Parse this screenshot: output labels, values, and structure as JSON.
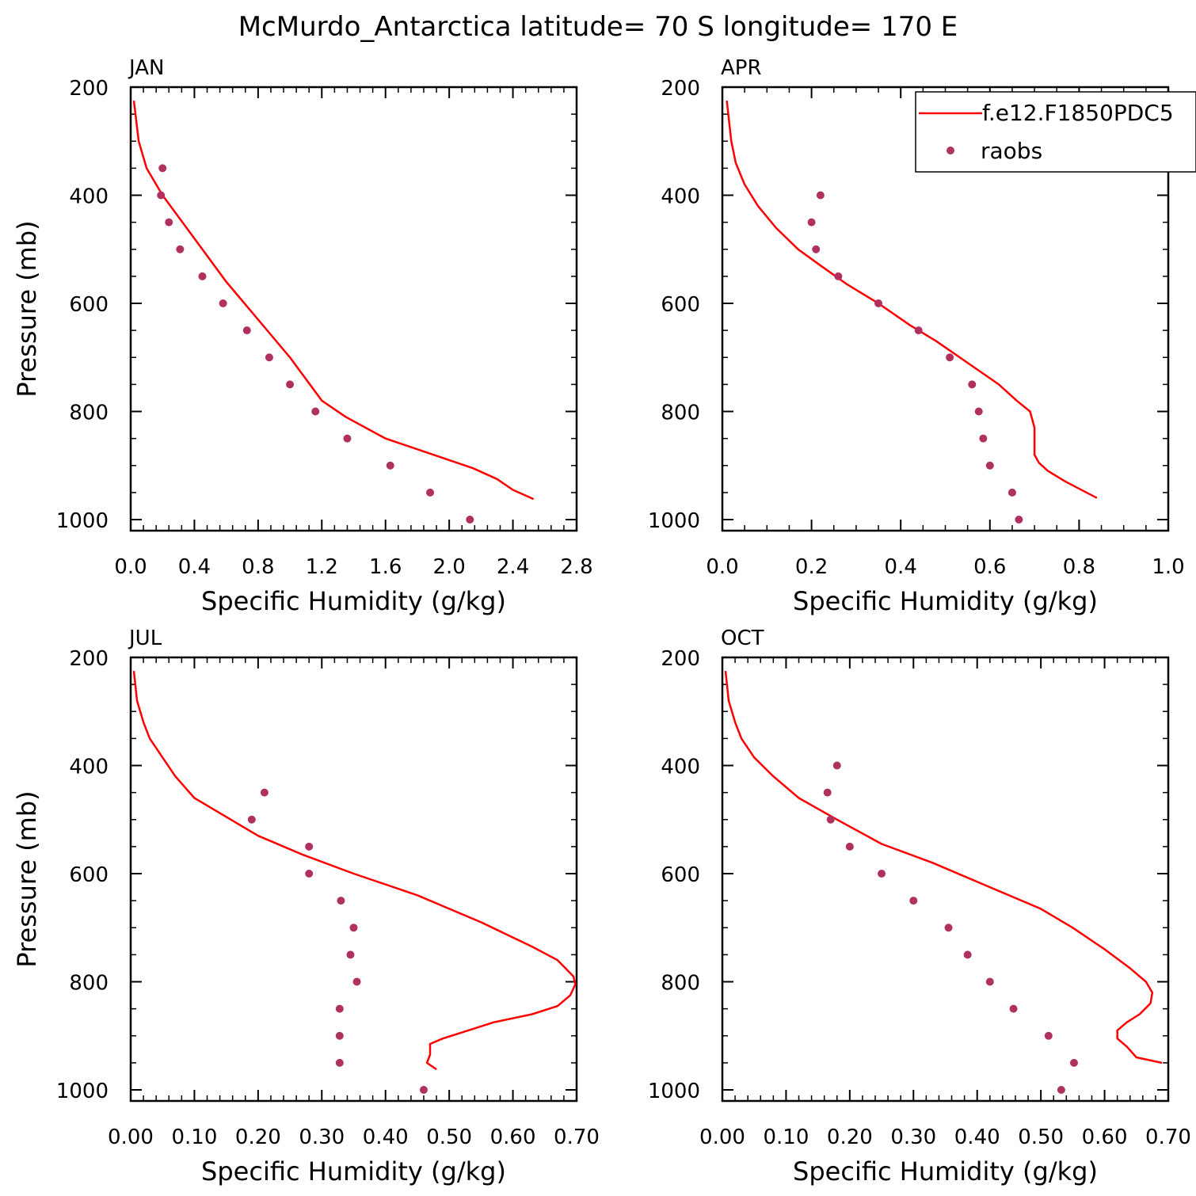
{
  "title": "McMurdo_Antarctica  latitude= 70 S longitude= 170 E",
  "colors": {
    "model": "#ff0000",
    "obs": "#b03060",
    "axis": "#000000"
  },
  "legend": {
    "model_label": "f.e12.F1850PDC5",
    "obs_label": "raobs",
    "placement": "top-right of APR panel"
  },
  "chart_data": [
    {
      "type": "line",
      "panel": "JAN",
      "xlabel": "Specific Humidity (g/kg)",
      "ylabel": "Pressure (mb)",
      "xlim": [
        0,
        2.8
      ],
      "ylim": [
        1025,
        200
      ],
      "y_inverted": true,
      "x_ticks": [
        "0.0",
        "0.4",
        "0.8",
        "1.2",
        "1.6",
        "2.0",
        "2.4",
        "2.8"
      ],
      "y_ticks": [
        "200",
        "400",
        "600",
        "800",
        "1000"
      ],
      "series": [
        {
          "name": "f.e12.F1850PDC5",
          "type": "line",
          "x": [
            0.02,
            0.05,
            0.1,
            0.2,
            0.3,
            0.45,
            0.6,
            0.8,
            1.0,
            1.2,
            1.35,
            1.6,
            1.9,
            2.15,
            2.3,
            2.4,
            2.53
          ],
          "y": [
            225,
            300,
            350,
            400,
            440,
            500,
            560,
            630,
            700,
            780,
            810,
            850,
            880,
            905,
            925,
            945,
            962
          ]
        },
        {
          "name": "raobs",
          "type": "scatter",
          "x": [
            0.2,
            0.19,
            0.24,
            0.31,
            0.45,
            0.58,
            0.73,
            0.87,
            1.0,
            1.16,
            1.36,
            1.63,
            1.88,
            2.13
          ],
          "y": [
            350,
            400,
            450,
            500,
            550,
            600,
            650,
            700,
            750,
            800,
            850,
            900,
            950,
            1000
          ]
        }
      ]
    },
    {
      "type": "line",
      "panel": "APR",
      "xlabel": "Specific Humidity (g/kg)",
      "ylabel": "",
      "xlim": [
        0,
        1.0
      ],
      "ylim": [
        1025,
        200
      ],
      "y_inverted": true,
      "x_ticks": [
        "0.0",
        "0.2",
        "0.4",
        "0.6",
        "0.8",
        "1.0"
      ],
      "y_ticks": [
        "200",
        "400",
        "600",
        "800",
        "1000"
      ],
      "series": [
        {
          "name": "f.e12.F1850PDC5",
          "type": "line",
          "x": [
            0.01,
            0.02,
            0.03,
            0.05,
            0.08,
            0.12,
            0.17,
            0.22,
            0.28,
            0.35,
            0.42,
            0.48,
            0.55,
            0.62,
            0.66,
            0.69,
            0.7,
            0.7,
            0.71,
            0.73,
            0.77,
            0.84
          ],
          "y": [
            225,
            300,
            340,
            380,
            420,
            460,
            500,
            530,
            565,
            600,
            640,
            670,
            710,
            750,
            780,
            800,
            830,
            880,
            895,
            910,
            930,
            960
          ]
        },
        {
          "name": "raobs",
          "type": "scatter",
          "x": [
            0.22,
            0.2,
            0.21,
            0.26,
            0.35,
            0.44,
            0.51,
            0.56,
            0.575,
            0.585,
            0.6,
            0.65,
            0.665
          ],
          "y": [
            400,
            450,
            500,
            550,
            600,
            650,
            700,
            750,
            800,
            850,
            900,
            950,
            1000
          ]
        }
      ]
    },
    {
      "type": "line",
      "panel": "JUL",
      "xlabel": "Specific Humidity (g/kg)",
      "ylabel": "Pressure (mb)",
      "xlim": [
        0,
        0.7
      ],
      "ylim": [
        1025,
        200
      ],
      "y_inverted": true,
      "x_ticks": [
        "0.00",
        "0.10",
        "0.20",
        "0.30",
        "0.40",
        "0.50",
        "0.60",
        "0.70"
      ],
      "y_ticks": [
        "200",
        "400",
        "600",
        "800",
        "1000"
      ],
      "series": [
        {
          "name": "f.e12.F1850PDC5",
          "type": "line",
          "x": [
            0.005,
            0.01,
            0.02,
            0.03,
            0.05,
            0.07,
            0.1,
            0.15,
            0.2,
            0.27,
            0.35,
            0.45,
            0.55,
            0.63,
            0.67,
            0.695,
            0.698,
            0.69,
            0.67,
            0.63,
            0.57,
            0.53,
            0.49,
            0.47,
            0.47,
            0.465,
            0.48
          ],
          "y": [
            225,
            280,
            320,
            350,
            385,
            420,
            460,
            495,
            530,
            565,
            600,
            640,
            690,
            735,
            760,
            790,
            805,
            825,
            845,
            860,
            875,
            890,
            905,
            915,
            935,
            950,
            962
          ]
        },
        {
          "name": "raobs",
          "type": "scatter",
          "x": [
            0.21,
            0.19,
            0.28,
            0.28,
            0.33,
            0.35,
            0.345,
            0.355,
            0.328,
            0.328,
            0.328,
            0.46
          ],
          "y": [
            450,
            500,
            550,
            600,
            650,
            700,
            750,
            800,
            850,
            900,
            950,
            1000
          ]
        }
      ]
    },
    {
      "type": "line",
      "panel": "OCT",
      "xlabel": "Specific Humidity (g/kg)",
      "ylabel": "",
      "xlim": [
        0,
        0.7
      ],
      "ylim": [
        1025,
        200
      ],
      "y_inverted": true,
      "x_ticks": [
        "0.00",
        "0.10",
        "0.20",
        "0.30",
        "0.40",
        "0.50",
        "0.60",
        "0.70"
      ],
      "y_ticks": [
        "200",
        "400",
        "600",
        "800",
        "1000"
      ],
      "series": [
        {
          "name": "f.e12.F1850PDC5",
          "type": "line",
          "x": [
            0.005,
            0.01,
            0.02,
            0.03,
            0.05,
            0.08,
            0.12,
            0.18,
            0.25,
            0.33,
            0.42,
            0.5,
            0.55,
            0.6,
            0.64,
            0.665,
            0.675,
            0.672,
            0.655,
            0.635,
            0.62,
            0.62,
            0.635,
            0.65,
            0.69
          ],
          "y": [
            225,
            280,
            320,
            350,
            385,
            420,
            460,
            500,
            545,
            580,
            625,
            665,
            700,
            740,
            775,
            800,
            820,
            840,
            860,
            875,
            890,
            905,
            920,
            940,
            950
          ]
        },
        {
          "name": "raobs",
          "type": "scatter",
          "x": [
            0.18,
            0.165,
            0.17,
            0.2,
            0.25,
            0.3,
            0.355,
            0.385,
            0.42,
            0.457,
            0.512,
            0.552,
            0.532
          ],
          "y": [
            400,
            450,
            500,
            550,
            600,
            650,
            700,
            750,
            800,
            850,
            900,
            950,
            1000
          ]
        }
      ]
    }
  ]
}
